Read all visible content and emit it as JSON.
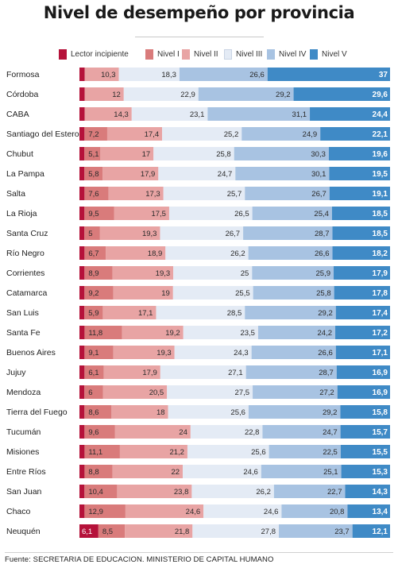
{
  "chart_data": {
    "type": "bar",
    "stacked": true,
    "orientation": "horizontal",
    "title": "Nivel de desempeño por provincia",
    "categories": [
      "Formosa",
      "Córdoba",
      "CABA",
      "Santiago del Estero",
      "Chubut",
      "La Pampa",
      "Salta",
      "La Rioja",
      "Santa Cruz",
      "Río Negro",
      "Corrientes",
      "Catamarca",
      "San Luis",
      "Santa Fe",
      "Buenos Aires",
      "Jujuy",
      "Mendoza",
      "Tierra del Fuego",
      "Tucumán",
      "Misiones",
      "Entre Ríos",
      "San Juan",
      "Chaco",
      "Neuquén"
    ],
    "series": [
      {
        "name": "Lector incipiente",
        "color": "#b5123a",
        "values": [
          1.6,
          1.6,
          1.6,
          1.6,
          1.6,
          1.6,
          1.6,
          1.6,
          1.6,
          1.6,
          1.6,
          1.6,
          1.6,
          1.6,
          1.6,
          1.6,
          1.6,
          1.6,
          1.6,
          1.6,
          1.6,
          1.6,
          1.6,
          6.1
        ],
        "labels": [
          "",
          "",
          "",
          "",
          "",
          "",
          "",
          "",
          "",
          "",
          "",
          "",
          "",
          "",
          "",
          "",
          "",
          "",
          "",
          "",
          "",
          "",
          "",
          "6,1"
        ]
      },
      {
        "name": "Nivel I",
        "color": "#d97b7b",
        "values": [
          0,
          0,
          0,
          7.2,
          5.1,
          5.8,
          7.6,
          9.5,
          5,
          6.7,
          8.9,
          9.2,
          5.9,
          11.8,
          9.1,
          6.1,
          6,
          8.6,
          9.6,
          11.1,
          8.8,
          10.4,
          12.9,
          8.5
        ],
        "labels": [
          "",
          "",
          "",
          "7,2",
          "5,1",
          "5,8",
          "7,6",
          "9,5",
          "5",
          "6,7",
          "8,9",
          "9,2",
          "5,9",
          "11,8",
          "9,1",
          "6,1",
          "6",
          "8,6",
          "9,6",
          "11,1",
          "8,8",
          "10,4",
          "12,9",
          "8,5"
        ]
      },
      {
        "name": "Nivel II",
        "color": "#e8a4a4",
        "values": [
          10.3,
          12,
          14.3,
          17.4,
          17,
          17.9,
          17.3,
          17.5,
          19.3,
          18.9,
          19.3,
          19,
          17.1,
          19.2,
          19.3,
          17.9,
          20.5,
          18,
          24,
          21.2,
          22,
          23.8,
          24.6,
          21.8
        ],
        "labels": [
          "10,3",
          "12",
          "14,3",
          "17,4",
          "17",
          "17,9",
          "17,3",
          "17,5",
          "19,3",
          "18,9",
          "19,3",
          "19",
          "17,1",
          "19,2",
          "19,3",
          "17,9",
          "20,5",
          "18",
          "24",
          "21,2",
          "22",
          "23,8",
          "24,6",
          "21,8"
        ]
      },
      {
        "name": "Nivel III",
        "color": "#e4ebf5",
        "values": [
          18.3,
          22.9,
          23.1,
          25.2,
          25.8,
          24.7,
          25.7,
          26.5,
          26.7,
          26.2,
          25,
          25.5,
          28.5,
          23.5,
          24.3,
          27.1,
          27.5,
          25.6,
          22.8,
          25.6,
          24.6,
          26.2,
          24.6,
          27.8
        ],
        "labels": [
          "18,3",
          "22,9",
          "23,1",
          "25,2",
          "25,8",
          "24,7",
          "25,7",
          "26,5",
          "26,7",
          "26,2",
          "25",
          "25,5",
          "28,5",
          "23,5",
          "24,3",
          "27,1",
          "27,5",
          "25,6",
          "22,8",
          "25,6",
          "24,6",
          "26,2",
          "24,6",
          "27,8"
        ]
      },
      {
        "name": "Nivel IV",
        "color": "#a8c3e2",
        "values": [
          26.6,
          29.2,
          31.1,
          24.9,
          30.3,
          30.1,
          26.7,
          25.4,
          28.7,
          26.6,
          25.9,
          25.8,
          29.2,
          24.2,
          26.6,
          28.7,
          27.2,
          29.2,
          24.7,
          22.5,
          25.1,
          22.7,
          20.8,
          23.7
        ],
        "labels": [
          "26,6",
          "29,2",
          "31,1",
          "24,9",
          "30,3",
          "30,1",
          "26,7",
          "25,4",
          "28,7",
          "26,6",
          "25,9",
          "25,8",
          "29,2",
          "24,2",
          "26,6",
          "28,7",
          "27,2",
          "29,2",
          "24,7",
          "22,5",
          "25,1",
          "22,7",
          "20,8",
          "23,7"
        ]
      },
      {
        "name": "Nivel V",
        "color": "#3f8ac6",
        "values": [
          37,
          29.6,
          24.4,
          22.1,
          19.6,
          19.5,
          19.1,
          18.5,
          18.5,
          18.2,
          17.9,
          17.8,
          17.4,
          17.2,
          17.1,
          16.9,
          16.9,
          15.8,
          15.7,
          15.5,
          15.3,
          14.3,
          13.4,
          12.1
        ],
        "labels": [
          "37",
          "29,6",
          "24,4",
          "22,1",
          "19,6",
          "19,5",
          "19,1",
          "18,5",
          "18,5",
          "18,2",
          "17,9",
          "17,8",
          "17,4",
          "17,2",
          "17,1",
          "16,9",
          "16,9",
          "15,8",
          "15,7",
          "15,5",
          "15,3",
          "14,3",
          "13,4",
          "12,1"
        ]
      }
    ],
    "legend_position": "top",
    "grid": false,
    "source": "Fuente: SECRETARIA DE EDUCACION. MINISTERIO DE CAPITAL HUMANO"
  }
}
